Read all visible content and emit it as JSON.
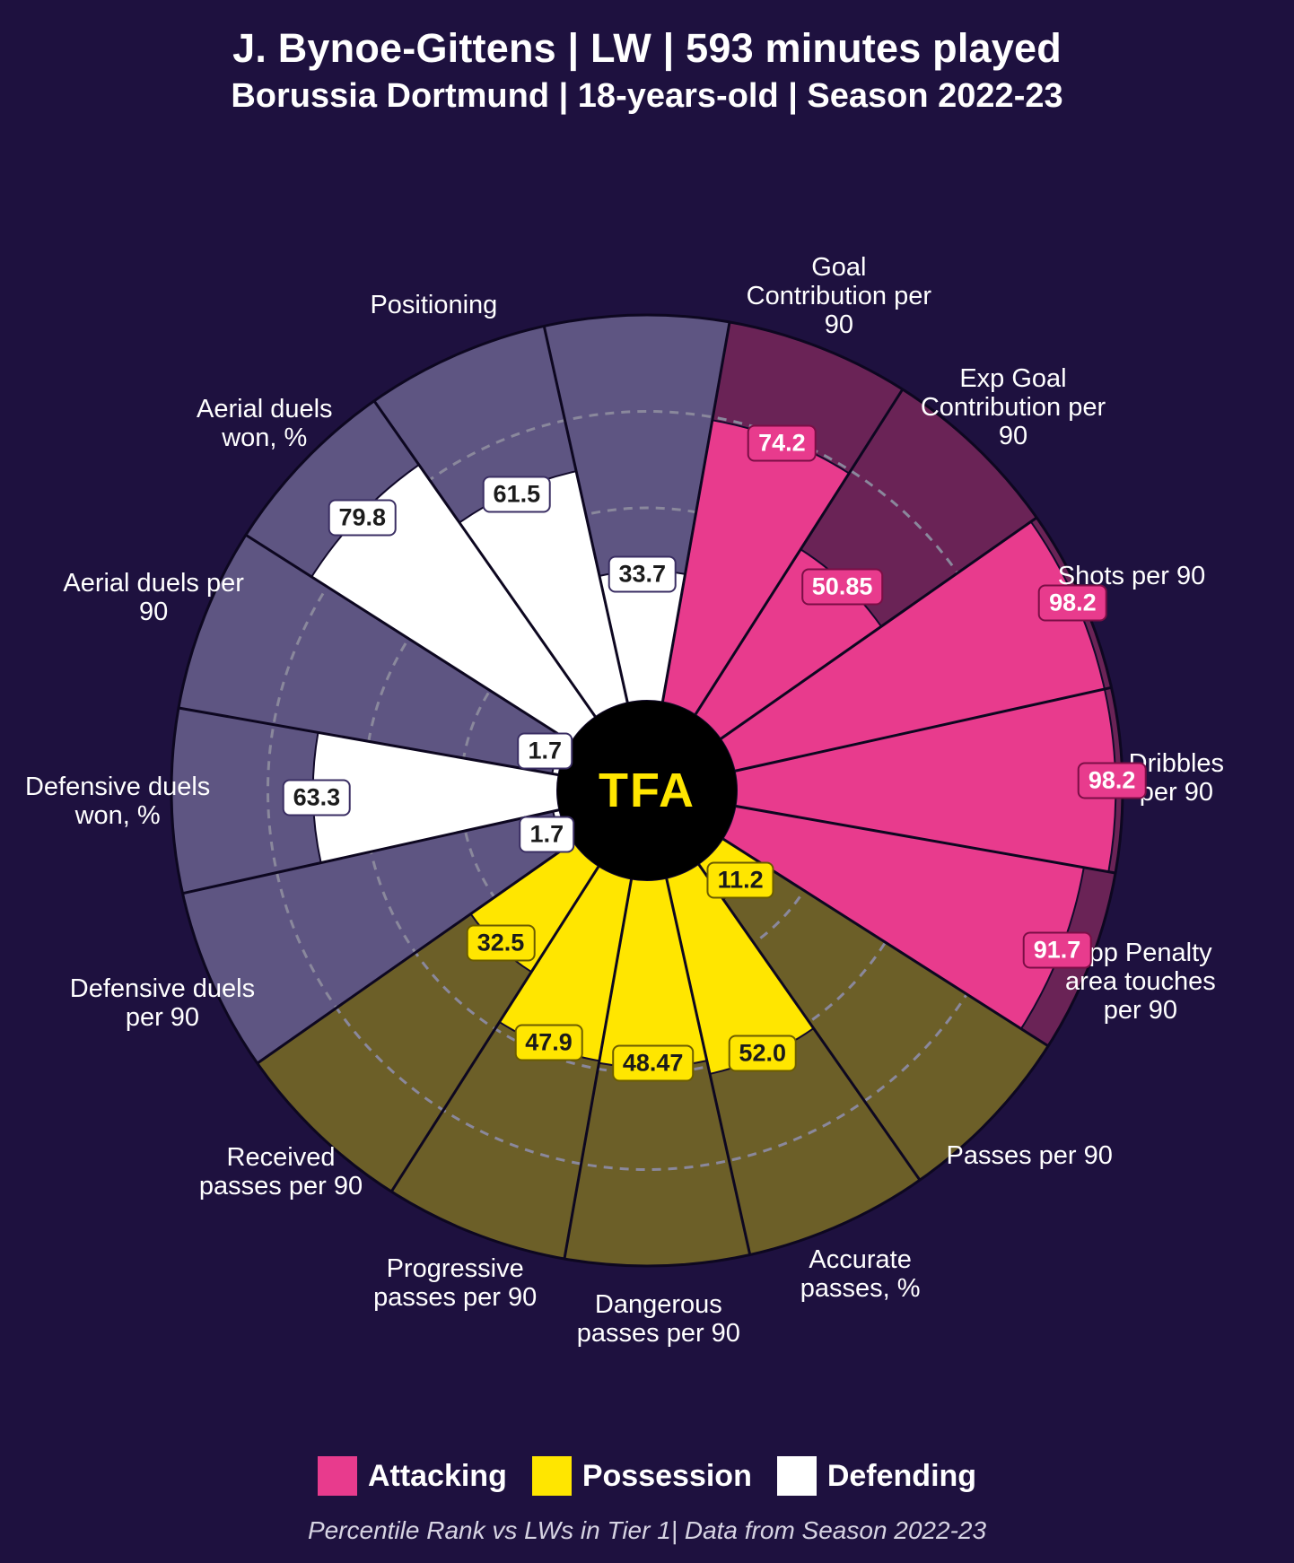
{
  "title": "J. Bynoe-Gittens | LW | 593 minutes played",
  "subtitle": "Borussia Dortmund | 18-years-old | Season 2022-23",
  "footnote": "Percentile Rank vs LWs in Tier 1| Data from Season 2022-23",
  "center_logo": "TFA",
  "colors": {
    "background": "#1e113f",
    "text": "#ffffff",
    "grid": "#8a889c",
    "center_bg": "#000000",
    "center_fg": "#ffe600",
    "categories": {
      "attacking": {
        "fill": "#e83b8d",
        "bg_fill": "#6a2356",
        "label": "Attacking"
      },
      "possession": {
        "fill": "#ffe600",
        "bg_fill": "#6c5f28",
        "label": "Possession"
      },
      "defending": {
        "fill": "#ffffff",
        "bg_fill": "#5e5582",
        "label": "Defending"
      }
    }
  },
  "chart": {
    "type": "polar-bar",
    "inner_radius": 100,
    "outer_radius": 530,
    "label_radius": 590,
    "grid_rings": [
      25,
      50,
      75
    ],
    "grid_dash": "10 8",
    "start_angle_deg": -80,
    "slices": [
      {
        "label": "Goal Contribution per 90",
        "value": 74.2,
        "display": "74.2",
        "category": "attacking"
      },
      {
        "label": "Exp Goal Contribution per 90",
        "value": 50.85,
        "display": "50.85",
        "category": "attacking"
      },
      {
        "label": "Shots per 90",
        "value": 98.2,
        "display": "98.2",
        "category": "attacking"
      },
      {
        "label": "Dribbles per 90",
        "value": 98.2,
        "display": "98.2",
        "category": "attacking"
      },
      {
        "label": "Opp Penalty area touches per 90",
        "value": 91.7,
        "display": "91.7",
        "category": "attacking"
      },
      {
        "label": "Passes per 90",
        "value": 11.2,
        "display": "11.2",
        "category": "possession"
      },
      {
        "label": "Accurate passes, %",
        "value": 52.0,
        "display": "52.0",
        "category": "possession"
      },
      {
        "label": "Dangerous passes per 90",
        "value": 48.47,
        "display": "48.47",
        "category": "possession"
      },
      {
        "label": "Progressive passes per 90",
        "value": 47.9,
        "display": "47.9",
        "category": "possession"
      },
      {
        "label": "Received passes per 90",
        "value": 32.5,
        "display": "32.5",
        "category": "possession"
      },
      {
        "label": "Defensive duels per 90",
        "value": 1.7,
        "display": "1.7",
        "category": "defending"
      },
      {
        "label": "Defensive duels won, %",
        "value": 63.3,
        "display": "63.3",
        "category": "defending"
      },
      {
        "label": "Aerial duels per 90",
        "value": 1.7,
        "display": "1.7",
        "category": "defending"
      },
      {
        "label": "Aerial duels won, %",
        "value": 79.8,
        "display": "79.8",
        "category": "defending"
      },
      {
        "label": "Positioning",
        "value": 61.5,
        "display": "61.5",
        "category": "defending"
      },
      {
        "label": "Positioning ",
        "value": 33.7,
        "display": "33.7",
        "category": "defending"
      }
    ],
    "category_label_overrides": {
      "14": "Positioning",
      "15": ""
    }
  },
  "legend_order": [
    "attacking",
    "possession",
    "defending"
  ]
}
